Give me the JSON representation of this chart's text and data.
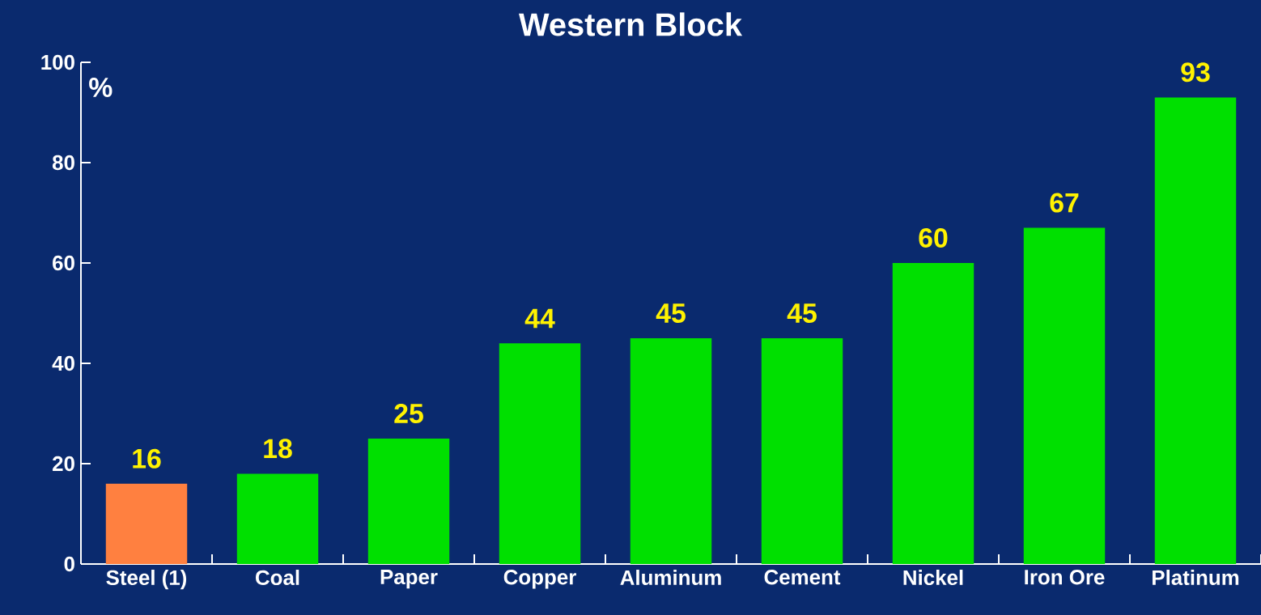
{
  "chart_data": {
    "type": "bar",
    "title": "Western Block",
    "ylabel": "%",
    "categories": [
      "Steel (1)",
      "Coal",
      "Paper",
      "Copper",
      "Aluminum",
      "Cement",
      "Nickel",
      "Iron Ore",
      "Platinum"
    ],
    "values": [
      16,
      18,
      25,
      44,
      45,
      45,
      60,
      67,
      93
    ],
    "colors": [
      "#ff8040",
      "#00e000",
      "#00e000",
      "#00e000",
      "#00e000",
      "#00e000",
      "#00e000",
      "#00e000",
      "#00e000"
    ],
    "ylim": [
      0,
      100
    ],
    "yticks": [
      0,
      20,
      40,
      60,
      80,
      100
    ],
    "data_labels": true,
    "grid": false
  }
}
